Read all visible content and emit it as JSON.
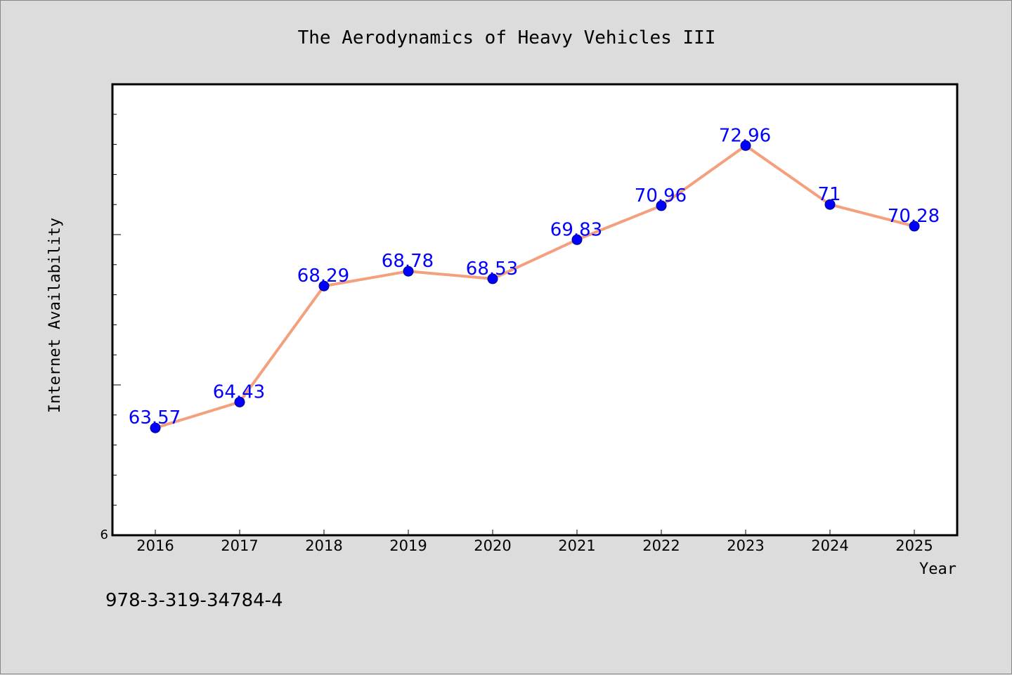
{
  "chart_data": {
    "type": "line",
    "title": "The Aerodynamics of Heavy Vehicles III",
    "xlabel": "Year",
    "ylabel": "Internet Availability",
    "categories": [
      "2016",
      "2017",
      "2018",
      "2019",
      "2020",
      "2021",
      "2022",
      "2023",
      "2024",
      "2025"
    ],
    "series": [
      {
        "values": [
          63.57,
          64.43,
          68.29,
          68.78,
          68.53,
          69.83,
          70.96,
          72.96,
          71,
          70.28
        ]
      }
    ],
    "data_labels": [
      "63.57",
      "64.43",
      "68.29",
      "68.78",
      "68.53",
      "69.83",
      "70.96",
      "72.96",
      "71",
      "70.28"
    ],
    "y_tick_labels_shown": [
      "6"
    ],
    "ylim": [
      60,
      75
    ],
    "grid": false,
    "legend": "none",
    "colors": {
      "line": "#f4a07f",
      "marker": "#0000ff",
      "data_label": "#0000ff",
      "background": "#dcdcdc",
      "plot_background": "#ffffff"
    }
  },
  "footer": {
    "isbn": "978-3-319-34784-4"
  }
}
